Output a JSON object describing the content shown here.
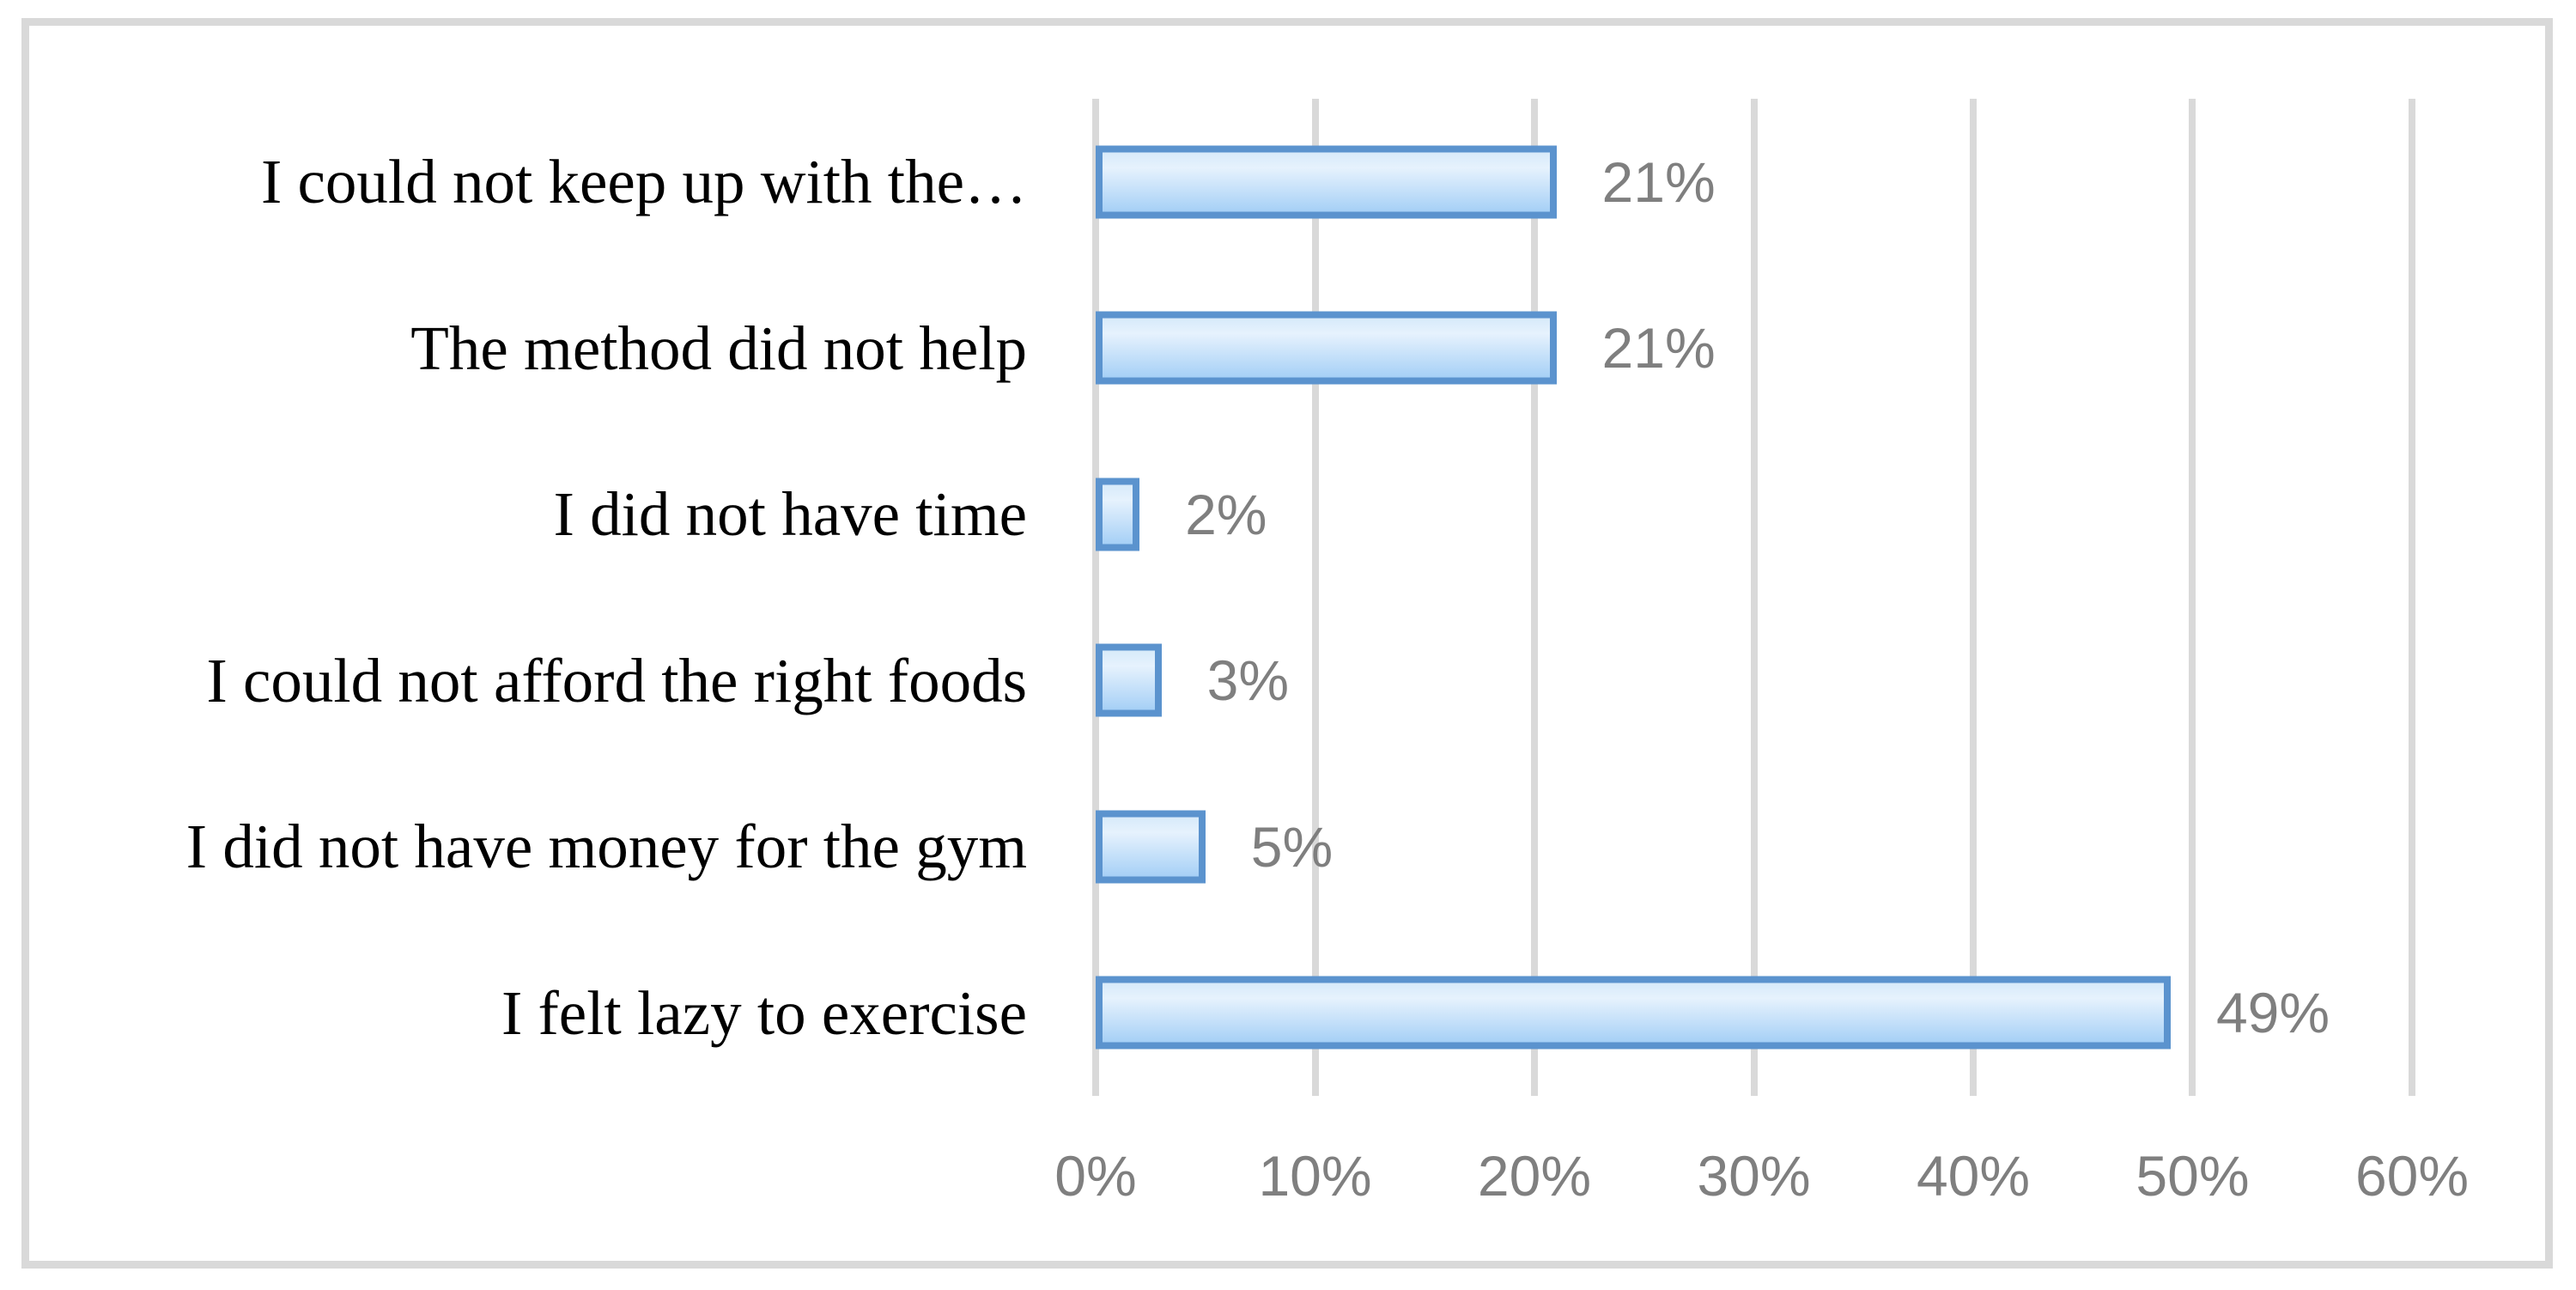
{
  "chart_data": {
    "type": "bar",
    "orientation": "horizontal",
    "title": "",
    "xlabel": "",
    "ylabel": "",
    "categories": [
      "I could not keep up with the…",
      "The method did not help",
      "I did not have time",
      "I could not afford the right foods",
      "I did not have money for the gym",
      "I felt lazy to exercise"
    ],
    "values": [
      21,
      21,
      2,
      3,
      5,
      49
    ],
    "value_labels": [
      "21%",
      "21%",
      "2%",
      "3%",
      "5%",
      "49%"
    ],
    "x_ticks": [
      "0%",
      "10%",
      "20%",
      "30%",
      "40%",
      "50%",
      "60%"
    ],
    "xlim": [
      0,
      60
    ],
    "grid": "vertical-only",
    "legend": "none",
    "colors": {
      "bar_border": "#5b93ce",
      "bar_fill_top": "#d7eafa",
      "bar_fill_bottom": "#a6d0f6",
      "gridline": "#d9d9d9",
      "tick_text": "#7f7f7f",
      "value_text": "#7f7f7f",
      "category_text": "#000000",
      "frame_border": "#d9d9d9"
    }
  }
}
